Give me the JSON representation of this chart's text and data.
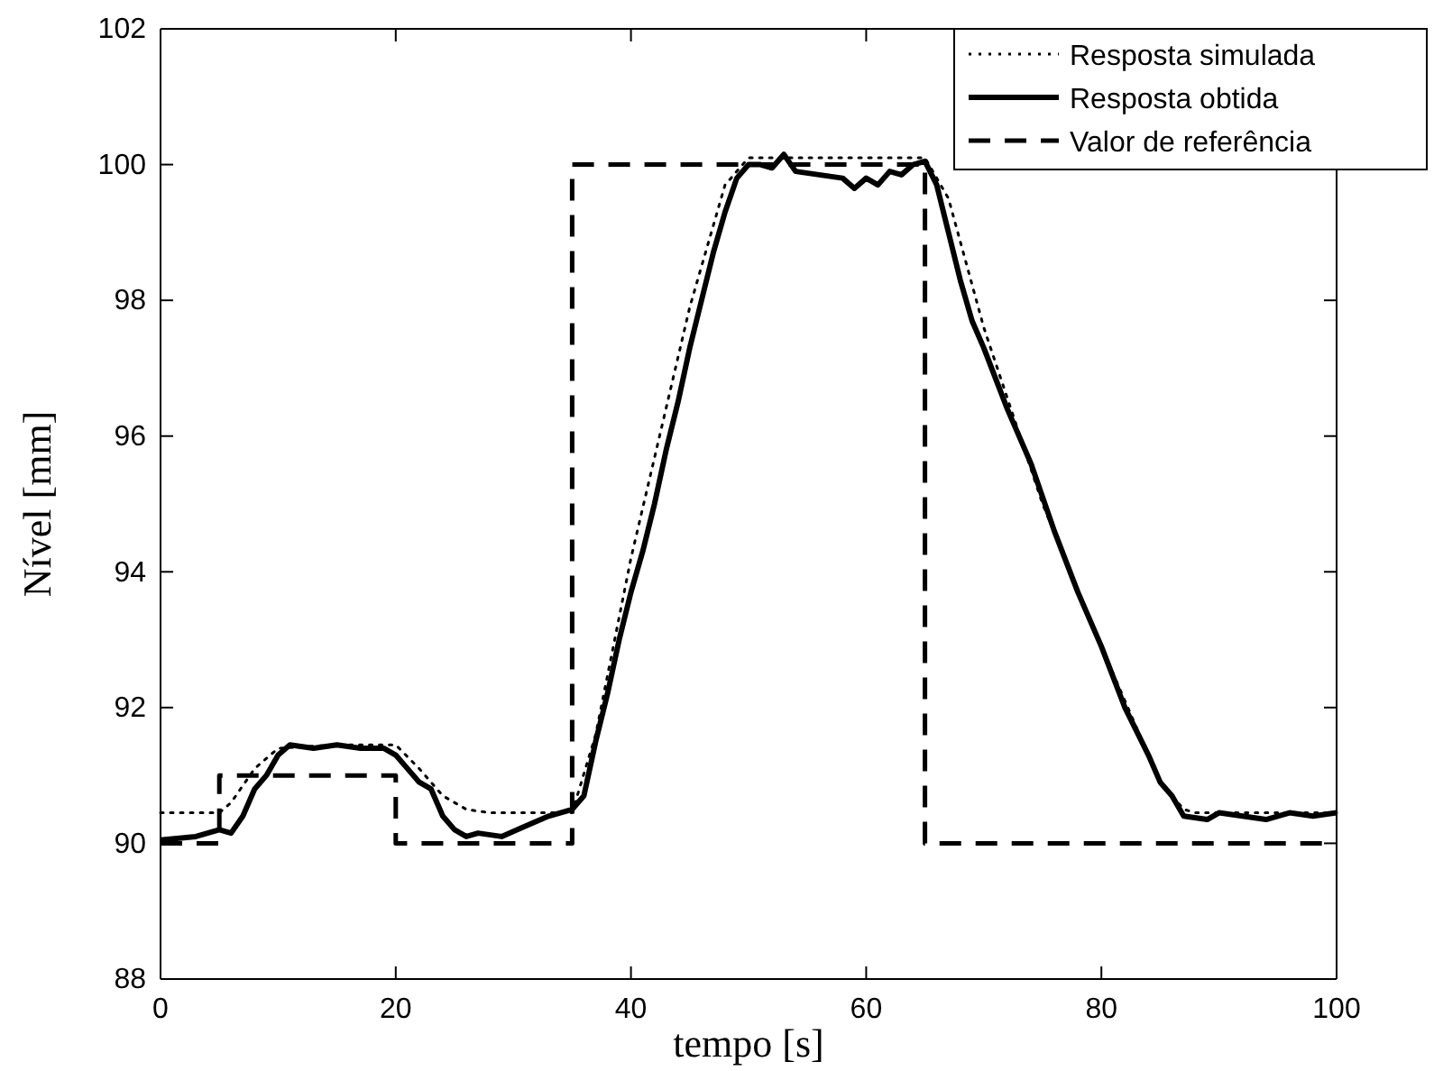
{
  "chart_data": {
    "type": "line",
    "xlabel": "tempo [s]",
    "ylabel": "Nível [mm]",
    "xlim": [
      0,
      100
    ],
    "xticks": [
      0,
      20,
      40,
      60,
      80,
      100
    ],
    "ylim": [
      88,
      102
    ],
    "yticks": [
      88,
      90,
      92,
      94,
      96,
      98,
      100,
      102
    ],
    "grid": false,
    "legend": "top right",
    "marker": "none",
    "series": [
      {
        "name": "Resposta simulada",
        "color": "#000000",
        "line_style": "dotted",
        "x": [
          0,
          5,
          6,
          8,
          10,
          15,
          20,
          22,
          24,
          26,
          28,
          35,
          37,
          40,
          45,
          48,
          50,
          65,
          67,
          70,
          75,
          80,
          85,
          87,
          88,
          100
        ],
        "values": [
          90.45,
          90.45,
          90.6,
          91.1,
          91.4,
          91.45,
          91.45,
          91.1,
          90.7,
          90.5,
          90.45,
          90.45,
          91.6,
          94.2,
          97.9,
          99.7,
          100.1,
          100.1,
          99.5,
          97.6,
          95.0,
          92.9,
          90.9,
          90.5,
          90.45,
          90.45
        ]
      },
      {
        "name": "Resposta obtida",
        "color": "#000000",
        "line_style": "solid",
        "x": [
          0,
          3,
          5,
          6,
          7,
          8,
          9,
          10,
          11,
          13,
          15,
          17,
          19,
          20,
          21,
          22,
          23,
          24,
          25,
          26,
          27,
          29,
          31,
          33,
          35,
          36,
          37,
          38,
          39,
          40,
          41,
          42,
          43,
          44,
          45,
          46,
          47,
          48,
          49,
          50,
          51,
          52,
          53,
          54,
          56,
          58,
          59,
          60,
          61,
          62,
          63,
          64,
          65,
          66,
          67,
          68,
          69,
          70,
          72,
          74,
          76,
          78,
          80,
          82,
          84,
          85,
          86,
          87,
          89,
          90,
          92,
          94,
          96,
          98,
          100
        ],
        "values": [
          90.05,
          90.1,
          90.2,
          90.15,
          90.4,
          90.8,
          91.0,
          91.3,
          91.45,
          91.4,
          91.45,
          91.4,
          91.4,
          91.3,
          91.1,
          90.9,
          90.8,
          90.4,
          90.2,
          90.1,
          90.15,
          90.1,
          90.25,
          90.4,
          90.5,
          90.7,
          91.5,
          92.2,
          93.0,
          93.7,
          94.3,
          95.0,
          95.8,
          96.5,
          97.3,
          98.0,
          98.7,
          99.3,
          99.8,
          100.0,
          100.0,
          99.95,
          100.15,
          99.9,
          99.85,
          99.8,
          99.65,
          99.8,
          99.7,
          99.9,
          99.85,
          100.0,
          100.05,
          99.7,
          99.0,
          98.3,
          97.7,
          97.3,
          96.4,
          95.6,
          94.6,
          93.7,
          92.9,
          92.0,
          91.3,
          90.9,
          90.7,
          90.4,
          90.35,
          90.45,
          90.4,
          90.35,
          90.45,
          90.4,
          90.45
        ]
      },
      {
        "name": "Valor de referência",
        "color": "#000000",
        "line_style": "dashed",
        "type": "step",
        "x": [
          0,
          5,
          20,
          35,
          65,
          100
        ],
        "values": [
          90,
          91,
          90,
          100,
          90,
          90
        ]
      }
    ]
  }
}
